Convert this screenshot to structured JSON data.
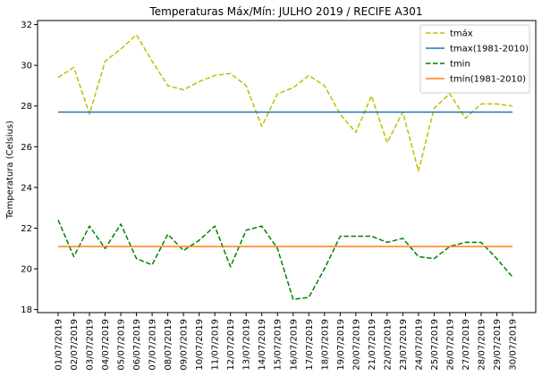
{
  "chart_data": {
    "type": "line",
    "title": "Temperaturas Máx/Mín: JULHO 2019 / RECIFE A301",
    "xlabel": "",
    "ylabel": "Temperatura (Celsius)",
    "ylim": [
      17.85,
      32.2
    ],
    "yticks": [
      18,
      20,
      22,
      24,
      26,
      28,
      30,
      32
    ],
    "grid": false,
    "legend_position": "top-right",
    "categories": [
      "01/07/2019",
      "02/07/2019",
      "03/07/2019",
      "04/07/2019",
      "05/07/2019",
      "06/07/2019",
      "07/07/2019",
      "08/07/2019",
      "09/07/2019",
      "10/07/2019",
      "11/07/2019",
      "12/07/2019",
      "13/07/2019",
      "14/07/2019",
      "15/07/2019",
      "16/07/2019",
      "17/07/2019",
      "18/07/2019",
      "19/07/2019",
      "20/07/2019",
      "21/07/2019",
      "22/07/2019",
      "23/07/2019",
      "24/07/2019",
      "25/07/2019",
      "26/07/2019",
      "27/07/2019",
      "28/07/2019",
      "29/07/2019",
      "30/07/2019"
    ],
    "series": [
      {
        "name": "tmáx",
        "color": "#bfbf00",
        "dashed": true,
        "values": [
          29.4,
          29.9,
          27.6,
          30.2,
          30.8,
          31.5,
          30.2,
          29.0,
          28.8,
          29.2,
          29.5,
          29.6,
          29.0,
          27.0,
          28.6,
          28.9,
          29.5,
          29.0,
          27.6,
          26.7,
          28.5,
          26.2,
          27.7,
          24.8,
          27.9,
          28.6,
          27.4,
          28.1,
          28.1,
          28.0
        ]
      },
      {
        "name": "tmax(1981-2010)",
        "color": "#1f77b4",
        "dashed": false,
        "values": [
          27.7,
          27.7,
          27.7,
          27.7,
          27.7,
          27.7,
          27.7,
          27.7,
          27.7,
          27.7,
          27.7,
          27.7,
          27.7,
          27.7,
          27.7,
          27.7,
          27.7,
          27.7,
          27.7,
          27.7,
          27.7,
          27.7,
          27.7,
          27.7,
          27.7,
          27.7,
          27.7,
          27.7,
          27.7,
          27.7
        ]
      },
      {
        "name": "tmin",
        "color": "#008000",
        "dashed": true,
        "values": [
          22.4,
          20.6,
          22.1,
          21.0,
          22.2,
          20.5,
          20.2,
          21.7,
          20.9,
          21.4,
          22.1,
          20.1,
          21.9,
          22.1,
          21.0,
          18.5,
          18.6,
          20.0,
          21.6,
          21.6,
          21.6,
          21.3,
          21.5,
          20.6,
          20.5,
          21.1,
          21.3,
          21.3,
          20.5,
          19.6
        ]
      },
      {
        "name": "tmín(1981-2010)",
        "color": "#ff7f0e",
        "dashed": false,
        "values": [
          21.1,
          21.1,
          21.1,
          21.1,
          21.1,
          21.1,
          21.1,
          21.1,
          21.1,
          21.1,
          21.1,
          21.1,
          21.1,
          21.1,
          21.1,
          21.1,
          21.1,
          21.1,
          21.1,
          21.1,
          21.1,
          21.1,
          21.1,
          21.1,
          21.1,
          21.1,
          21.1,
          21.1,
          21.1,
          21.1
        ]
      }
    ]
  }
}
